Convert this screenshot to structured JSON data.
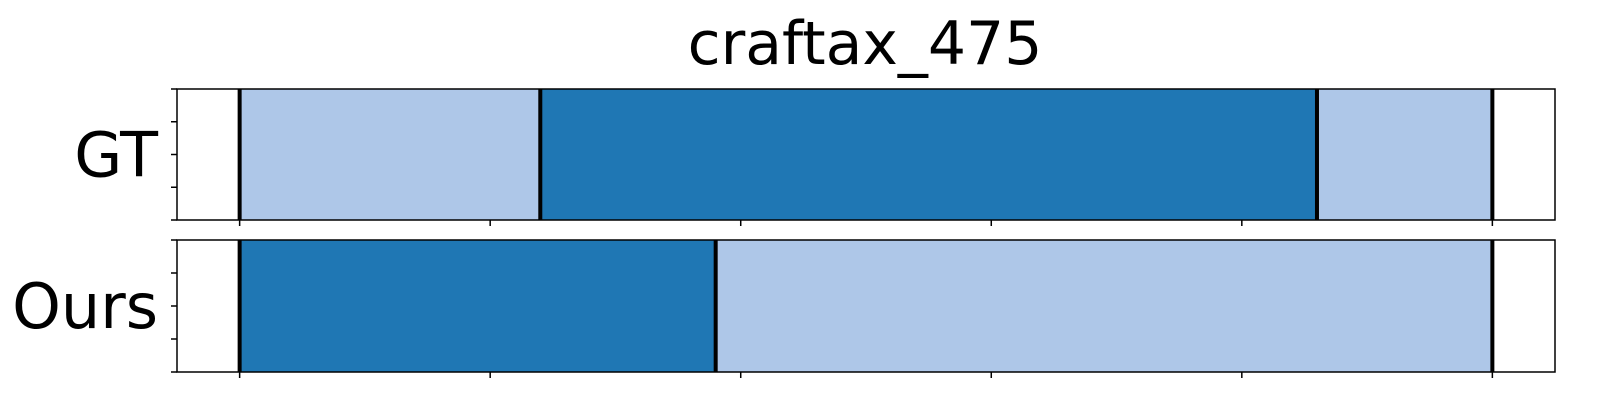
{
  "chart_data": {
    "type": "bar",
    "title": "craftax_475",
    "xlabel": "",
    "ylabel": "",
    "xlim": [
      -0.05,
      1.05
    ],
    "grid": false,
    "tick_labels_visible": false,
    "colors": {
      "dark": "#1f77b4",
      "light": "#aec7e8",
      "boundary": "#000000"
    },
    "rows": [
      {
        "label": "GT",
        "segments": [
          {
            "start": 0.0,
            "end": 0.24,
            "color": "light"
          },
          {
            "start": 0.24,
            "end": 0.86,
            "color": "dark"
          },
          {
            "start": 0.86,
            "end": 1.0,
            "color": "light"
          }
        ]
      },
      {
        "label": "Ours",
        "segments": [
          {
            "start": 0.0,
            "end": 0.38,
            "color": "dark"
          },
          {
            "start": 0.38,
            "end": 1.0,
            "color": "light"
          }
        ]
      }
    ]
  }
}
